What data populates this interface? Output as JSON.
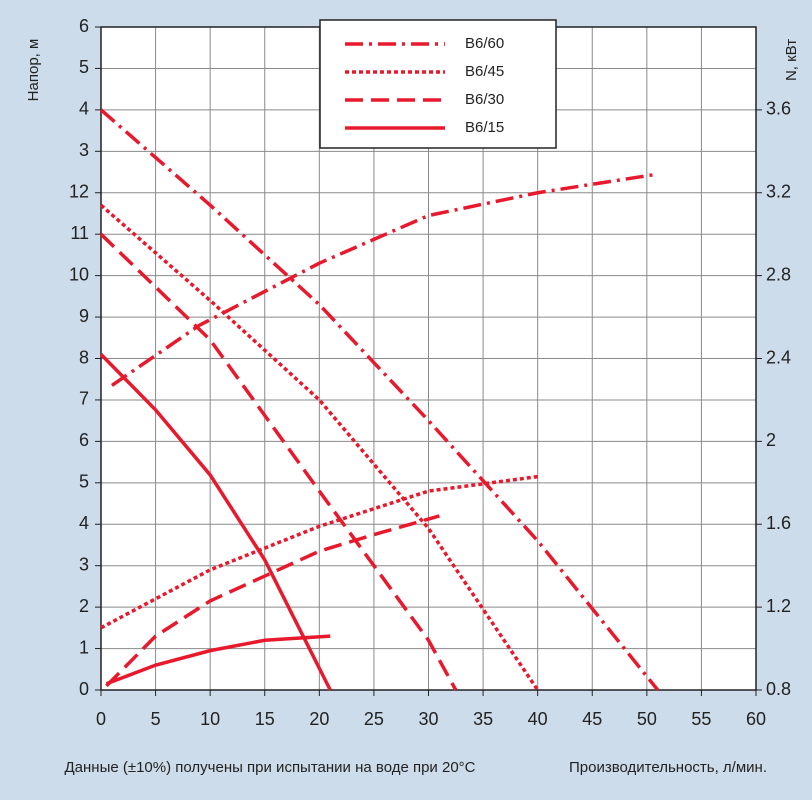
{
  "chart_data": {
    "type": "line",
    "xlabel": "Производительность, л/мин.",
    "ylabel": "Напор, м",
    "y2label": "N, кВт",
    "note": "Данные (±10%) получены при испытании на воде при 20°C",
    "xlim": [
      0,
      60
    ],
    "xticks": [
      0,
      5,
      10,
      15,
      20,
      25,
      30,
      35,
      40,
      45,
      50,
      55,
      60
    ],
    "ylim": [
      0,
      16
    ],
    "yticks": [
      0,
      1,
      2,
      3,
      4,
      5,
      6,
      7,
      8,
      9,
      10,
      11,
      12,
      {
        "value": 13,
        "label": "3"
      },
      {
        "value": 14,
        "label": "4"
      },
      {
        "value": 15,
        "label": "5"
      },
      {
        "value": 16,
        "label": "6"
      }
    ],
    "y2lim": [
      0.8,
      4.0
    ],
    "y2ticks": [
      0.8,
      1.2,
      1.6,
      2.0,
      2.4,
      2.8,
      3.2,
      3.6
    ],
    "grid": true,
    "legend": "top",
    "series": [
      {
        "name": "B6/60",
        "color": "#e8192c",
        "dash": "dashdot",
        "x": [
          0,
          10,
          20,
          30,
          40,
          51
        ],
        "values": [
          14,
          11.7,
          9.3,
          6.5,
          3.6,
          0
        ]
      },
      {
        "name": "B6/45",
        "color": "#e8192c",
        "dash": "dotted",
        "x": [
          0,
          10,
          20,
          30,
          40
        ],
        "values": [
          11.7,
          9.4,
          7.0,
          3.9,
          0
        ]
      },
      {
        "name": "B6/30",
        "color": "#e8192c",
        "dash": "dashed",
        "x": [
          0,
          10,
          20,
          30,
          32.5
        ],
        "values": [
          11.0,
          8.45,
          4.8,
          1.2,
          0
        ]
      },
      {
        "name": "B6/15",
        "color": "#e8192c",
        "dash": "solid",
        "x": [
          0,
          5,
          10,
          15,
          21
        ],
        "values": [
          8.1,
          6.76,
          5.19,
          3.14,
          0
        ]
      },
      {
        "color": "#e8192c",
        "dash": "dashdot",
        "axis": "y2",
        "x": [
          1,
          9,
          20,
          30,
          40,
          51
        ],
        "values": [
          2.27,
          2.56,
          2.86,
          3.09,
          3.2,
          3.29
        ]
      },
      {
        "color": "#e8192c",
        "dash": "dotted",
        "axis": "y2",
        "x": [
          0,
          10,
          20,
          30,
          40
        ],
        "values": [
          1.1,
          1.38,
          1.59,
          1.76,
          1.83
        ]
      },
      {
        "color": "#e8192c",
        "dash": "dashed",
        "axis": "y2",
        "x": [
          0.5,
          5,
          10,
          15,
          20,
          25,
          31
        ],
        "values": [
          0.82,
          1.06,
          1.23,
          1.35,
          1.47,
          1.55,
          1.64
        ]
      },
      {
        "color": "#e8192c",
        "dash": "solid",
        "axis": "y2",
        "x": [
          0.5,
          5,
          10,
          15,
          21
        ],
        "values": [
          0.83,
          0.92,
          0.99,
          1.04,
          1.06
        ]
      }
    ]
  }
}
